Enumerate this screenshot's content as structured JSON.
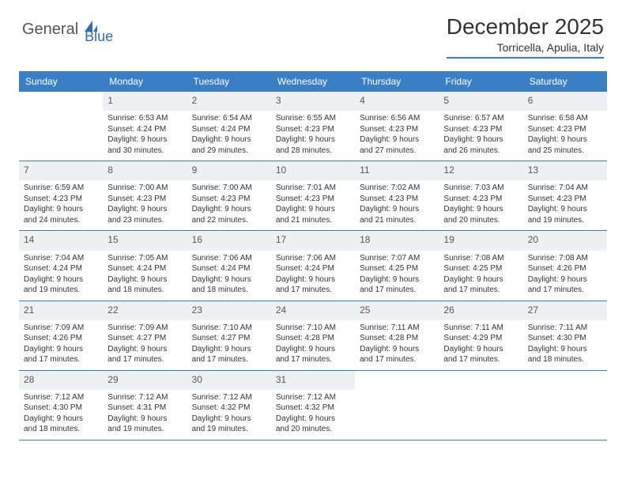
{
  "logo": {
    "general": "General",
    "blue": "Blue"
  },
  "title": "December 2025",
  "location": "Torricella, Apulia, Italy",
  "theme": {
    "header_bg": "#3a7fc4",
    "header_text": "#ffffff",
    "border_color": "#3a7fc4",
    "shaded_bg": "#f2f4f6",
    "text_color": "#333333"
  },
  "dayNames": [
    "Sunday",
    "Monday",
    "Tuesday",
    "Wednesday",
    "Thursday",
    "Friday",
    "Saturday"
  ],
  "weeks": [
    [
      {
        "day": "",
        "empty": true
      },
      {
        "day": "1",
        "sunrise": "Sunrise: 6:53 AM",
        "sunset": "Sunset: 4:24 PM",
        "daylight1": "Daylight: 9 hours",
        "daylight2": "and 30 minutes."
      },
      {
        "day": "2",
        "sunrise": "Sunrise: 6:54 AM",
        "sunset": "Sunset: 4:24 PM",
        "daylight1": "Daylight: 9 hours",
        "daylight2": "and 29 minutes."
      },
      {
        "day": "3",
        "sunrise": "Sunrise: 6:55 AM",
        "sunset": "Sunset: 4:23 PM",
        "daylight1": "Daylight: 9 hours",
        "daylight2": "and 28 minutes."
      },
      {
        "day": "4",
        "sunrise": "Sunrise: 6:56 AM",
        "sunset": "Sunset: 4:23 PM",
        "daylight1": "Daylight: 9 hours",
        "daylight2": "and 27 minutes."
      },
      {
        "day": "5",
        "sunrise": "Sunrise: 6:57 AM",
        "sunset": "Sunset: 4:23 PM",
        "daylight1": "Daylight: 9 hours",
        "daylight2": "and 26 minutes."
      },
      {
        "day": "6",
        "sunrise": "Sunrise: 6:58 AM",
        "sunset": "Sunset: 4:23 PM",
        "daylight1": "Daylight: 9 hours",
        "daylight2": "and 25 minutes."
      }
    ],
    [
      {
        "day": "7",
        "sunrise": "Sunrise: 6:59 AM",
        "sunset": "Sunset: 4:23 PM",
        "daylight1": "Daylight: 9 hours",
        "daylight2": "and 24 minutes."
      },
      {
        "day": "8",
        "sunrise": "Sunrise: 7:00 AM",
        "sunset": "Sunset: 4:23 PM",
        "daylight1": "Daylight: 9 hours",
        "daylight2": "and 23 minutes."
      },
      {
        "day": "9",
        "sunrise": "Sunrise: 7:00 AM",
        "sunset": "Sunset: 4:23 PM",
        "daylight1": "Daylight: 9 hours",
        "daylight2": "and 22 minutes."
      },
      {
        "day": "10",
        "sunrise": "Sunrise: 7:01 AM",
        "sunset": "Sunset: 4:23 PM",
        "daylight1": "Daylight: 9 hours",
        "daylight2": "and 21 minutes."
      },
      {
        "day": "11",
        "sunrise": "Sunrise: 7:02 AM",
        "sunset": "Sunset: 4:23 PM",
        "daylight1": "Daylight: 9 hours",
        "daylight2": "and 21 minutes."
      },
      {
        "day": "12",
        "sunrise": "Sunrise: 7:03 AM",
        "sunset": "Sunset: 4:23 PM",
        "daylight1": "Daylight: 9 hours",
        "daylight2": "and 20 minutes."
      },
      {
        "day": "13",
        "sunrise": "Sunrise: 7:04 AM",
        "sunset": "Sunset: 4:23 PM",
        "daylight1": "Daylight: 9 hours",
        "daylight2": "and 19 minutes."
      }
    ],
    [
      {
        "day": "14",
        "sunrise": "Sunrise: 7:04 AM",
        "sunset": "Sunset: 4:24 PM",
        "daylight1": "Daylight: 9 hours",
        "daylight2": "and 19 minutes."
      },
      {
        "day": "15",
        "sunrise": "Sunrise: 7:05 AM",
        "sunset": "Sunset: 4:24 PM",
        "daylight1": "Daylight: 9 hours",
        "daylight2": "and 18 minutes."
      },
      {
        "day": "16",
        "sunrise": "Sunrise: 7:06 AM",
        "sunset": "Sunset: 4:24 PM",
        "daylight1": "Daylight: 9 hours",
        "daylight2": "and 18 minutes."
      },
      {
        "day": "17",
        "sunrise": "Sunrise: 7:06 AM",
        "sunset": "Sunset: 4:24 PM",
        "daylight1": "Daylight: 9 hours",
        "daylight2": "and 17 minutes."
      },
      {
        "day": "18",
        "sunrise": "Sunrise: 7:07 AM",
        "sunset": "Sunset: 4:25 PM",
        "daylight1": "Daylight: 9 hours",
        "daylight2": "and 17 minutes."
      },
      {
        "day": "19",
        "sunrise": "Sunrise: 7:08 AM",
        "sunset": "Sunset: 4:25 PM",
        "daylight1": "Daylight: 9 hours",
        "daylight2": "and 17 minutes."
      },
      {
        "day": "20",
        "sunrise": "Sunrise: 7:08 AM",
        "sunset": "Sunset: 4:26 PM",
        "daylight1": "Daylight: 9 hours",
        "daylight2": "and 17 minutes."
      }
    ],
    [
      {
        "day": "21",
        "sunrise": "Sunrise: 7:09 AM",
        "sunset": "Sunset: 4:26 PM",
        "daylight1": "Daylight: 9 hours",
        "daylight2": "and 17 minutes."
      },
      {
        "day": "22",
        "sunrise": "Sunrise: 7:09 AM",
        "sunset": "Sunset: 4:27 PM",
        "daylight1": "Daylight: 9 hours",
        "daylight2": "and 17 minutes."
      },
      {
        "day": "23",
        "sunrise": "Sunrise: 7:10 AM",
        "sunset": "Sunset: 4:27 PM",
        "daylight1": "Daylight: 9 hours",
        "daylight2": "and 17 minutes."
      },
      {
        "day": "24",
        "sunrise": "Sunrise: 7:10 AM",
        "sunset": "Sunset: 4:28 PM",
        "daylight1": "Daylight: 9 hours",
        "daylight2": "and 17 minutes."
      },
      {
        "day": "25",
        "sunrise": "Sunrise: 7:11 AM",
        "sunset": "Sunset: 4:28 PM",
        "daylight1": "Daylight: 9 hours",
        "daylight2": "and 17 minutes."
      },
      {
        "day": "26",
        "sunrise": "Sunrise: 7:11 AM",
        "sunset": "Sunset: 4:29 PM",
        "daylight1": "Daylight: 9 hours",
        "daylight2": "and 17 minutes."
      },
      {
        "day": "27",
        "sunrise": "Sunrise: 7:11 AM",
        "sunset": "Sunset: 4:30 PM",
        "daylight1": "Daylight: 9 hours",
        "daylight2": "and 18 minutes."
      }
    ],
    [
      {
        "day": "28",
        "sunrise": "Sunrise: 7:12 AM",
        "sunset": "Sunset: 4:30 PM",
        "daylight1": "Daylight: 9 hours",
        "daylight2": "and 18 minutes."
      },
      {
        "day": "29",
        "sunrise": "Sunrise: 7:12 AM",
        "sunset": "Sunset: 4:31 PM",
        "daylight1": "Daylight: 9 hours",
        "daylight2": "and 19 minutes."
      },
      {
        "day": "30",
        "sunrise": "Sunrise: 7:12 AM",
        "sunset": "Sunset: 4:32 PM",
        "daylight1": "Daylight: 9 hours",
        "daylight2": "and 19 minutes."
      },
      {
        "day": "31",
        "sunrise": "Sunrise: 7:12 AM",
        "sunset": "Sunset: 4:32 PM",
        "daylight1": "Daylight: 9 hours",
        "daylight2": "and 20 minutes."
      },
      {
        "day": "",
        "empty": true
      },
      {
        "day": "",
        "empty": true
      },
      {
        "day": "",
        "empty": true
      }
    ]
  ]
}
